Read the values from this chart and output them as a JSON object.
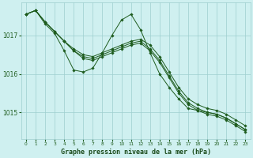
{
  "bg_color": "#cff0f0",
  "grid_color": "#9ecece",
  "line_color": "#1e5c1e",
  "marker_color": "#1e5c1e",
  "xlabel": "Graphe pression niveau de la mer (hPa)",
  "xlabel_color": "#1a4a1a",
  "yticks": [
    1015,
    1016,
    1017
  ],
  "xticks": [
    0,
    1,
    2,
    3,
    4,
    5,
    6,
    7,
    8,
    9,
    10,
    11,
    12,
    13,
    14,
    15,
    16,
    17,
    18,
    19,
    20,
    21,
    22,
    23
  ],
  "xlim": [
    -0.5,
    23.5
  ],
  "ylim": [
    1014.3,
    1017.85
  ],
  "series": [
    [
      1017.55,
      1017.65,
      1017.35,
      1017.1,
      1016.85,
      1016.65,
      1016.5,
      1016.45,
      1016.55,
      1016.65,
      1016.75,
      1016.85,
      1016.9,
      1016.75,
      1016.45,
      1016.05,
      1015.65,
      1015.35,
      1015.2,
      1015.1,
      1015.05,
      1014.95,
      1014.8,
      1014.65
    ],
    [
      1017.55,
      1017.65,
      1017.35,
      1017.1,
      1016.85,
      1016.6,
      1016.45,
      1016.4,
      1016.5,
      1016.6,
      1016.7,
      1016.8,
      1016.85,
      1016.65,
      1016.35,
      1015.95,
      1015.55,
      1015.25,
      1015.1,
      1015.0,
      1014.95,
      1014.85,
      1014.7,
      1014.55
    ],
    [
      1017.55,
      1017.65,
      1017.35,
      1017.1,
      1016.85,
      1016.6,
      1016.4,
      1016.35,
      1016.45,
      1016.55,
      1016.65,
      1016.75,
      1016.8,
      1016.6,
      1016.3,
      1015.9,
      1015.5,
      1015.2,
      1015.05,
      1014.95,
      1014.9,
      1014.8,
      1014.65,
      1014.5
    ],
    [
      1017.55,
      1017.65,
      1017.3,
      1017.05,
      1016.6,
      1016.1,
      1016.05,
      1016.15,
      1016.55,
      1017.0,
      1017.4,
      1017.55,
      1017.15,
      1016.55,
      1016.0,
      1015.65,
      1015.35,
      1015.1,
      1015.05,
      1015.0,
      1014.95,
      1014.85,
      1014.7,
      1014.55
    ]
  ]
}
